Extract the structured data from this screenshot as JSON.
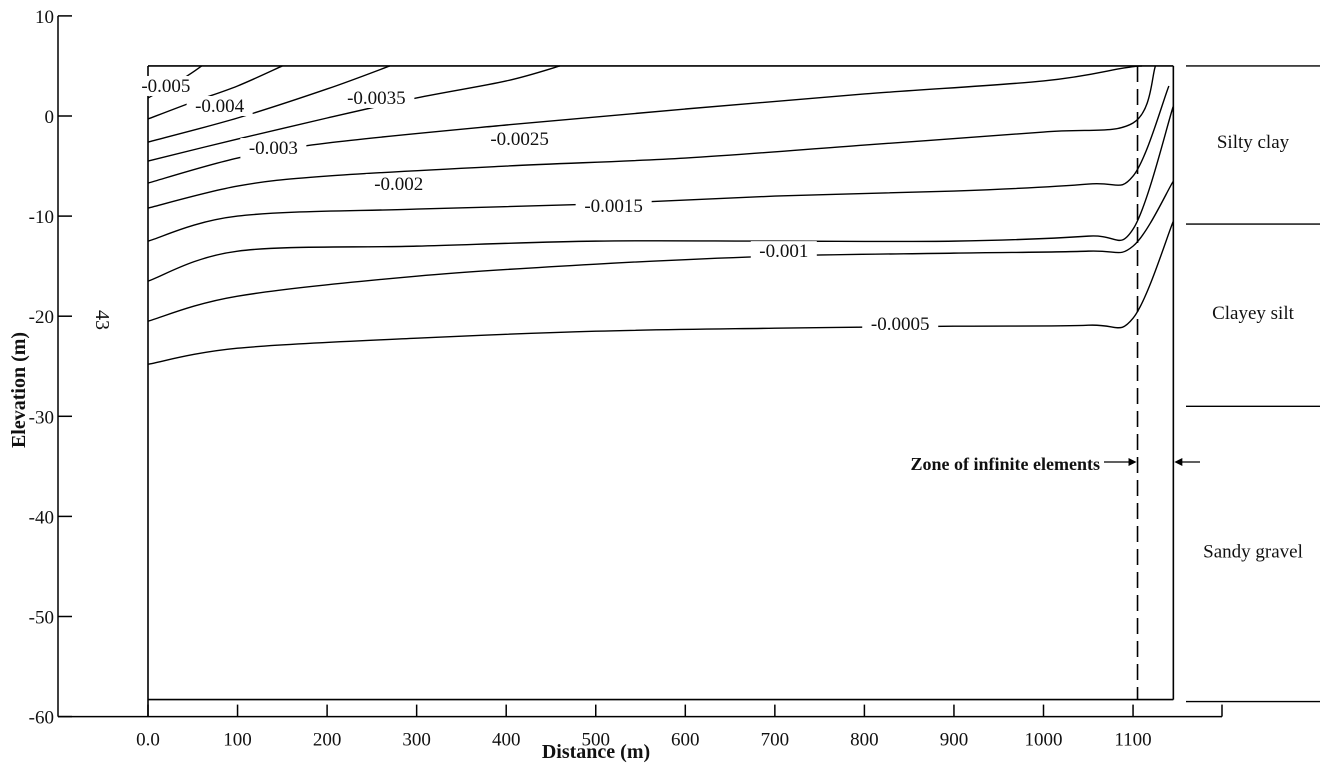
{
  "chart_data": {
    "type": "contour",
    "xlabel": "Distance (m)",
    "ylabel": "Elevation (m)",
    "side_number": "43",
    "xlim": [
      0,
      1100
    ],
    "ylim": [
      -60,
      10
    ],
    "x_ticks": [
      0,
      100,
      200,
      300,
      400,
      500,
      600,
      700,
      800,
      900,
      1000,
      1100
    ],
    "x_tick_labels": [
      "0.0",
      "100",
      "200",
      "300",
      "400",
      "500",
      "600",
      "700",
      "800",
      "900",
      "1000",
      "1100"
    ],
    "y_ticks": [
      10,
      0,
      -10,
      -20,
      -30,
      -40,
      -50,
      -60
    ],
    "y_tick_labels": [
      "10",
      "0",
      "-10",
      "-20",
      "-30",
      "-40",
      "-50",
      "-60"
    ],
    "domain": {
      "x": [
        0,
        1145
      ],
      "y_top": 5,
      "y_bottom": -58.3
    },
    "infinite_zone_x": 1105,
    "infinite_zone_label": "Zone of infinite elements",
    "contours": [
      {
        "label": "-0.005",
        "points": [
          [
            0,
            1.8
          ],
          [
            40,
            3.8
          ],
          [
            60,
            5
          ]
        ]
      },
      {
        "label": "-0.004",
        "points": [
          [
            0,
            -0.3
          ],
          [
            50,
            1.4
          ],
          [
            100,
            3
          ],
          [
            150,
            5
          ]
        ]
      },
      {
        "label": "-0.0035",
        "points": [
          [
            0,
            -2.6
          ],
          [
            100,
            -0.2
          ],
          [
            200,
            2.7
          ],
          [
            270,
            5
          ]
        ]
      },
      {
        "label": "-0.003",
        "points": [
          [
            0,
            -4.5
          ],
          [
            100,
            -2.3
          ],
          [
            200,
            -0.2
          ],
          [
            300,
            1.8
          ],
          [
            400,
            3.5
          ],
          [
            460,
            5
          ]
        ]
      },
      {
        "label": "-0.0025",
        "points": [
          [
            0,
            -6.7
          ],
          [
            100,
            -4.2
          ],
          [
            200,
            -2.7
          ],
          [
            400,
            -0.9
          ],
          [
            600,
            0.7
          ],
          [
            800,
            2.2
          ],
          [
            1000,
            3.5
          ],
          [
            1090,
            4.8
          ],
          [
            1110,
            5
          ]
        ]
      },
      {
        "label": "-0.002",
        "points": [
          [
            0,
            -9.2
          ],
          [
            100,
            -7
          ],
          [
            200,
            -6
          ],
          [
            400,
            -5
          ],
          [
            600,
            -4.2
          ],
          [
            800,
            -2.9
          ],
          [
            1000,
            -1.6
          ],
          [
            1100,
            -0.7
          ],
          [
            1125,
            5
          ]
        ]
      },
      {
        "label": "-0.0015",
        "points": [
          [
            0,
            -12.5
          ],
          [
            100,
            -10
          ],
          [
            300,
            -9.3
          ],
          [
            500,
            -8.8
          ],
          [
            700,
            -8
          ],
          [
            900,
            -7.5
          ],
          [
            1050,
            -6.8
          ],
          [
            1100,
            -6
          ],
          [
            1140,
            3
          ]
        ]
      },
      {
        "label": "-0.001",
        "points": [
          [
            0,
            -16.5
          ],
          [
            100,
            -13.5
          ],
          [
            300,
            -13
          ],
          [
            500,
            -12.5
          ],
          [
            700,
            -12.5
          ],
          [
            900,
            -12.5
          ],
          [
            1050,
            -12
          ],
          [
            1100,
            -11.3
          ],
          [
            1145,
            1
          ]
        ]
      },
      {
        "label": "-0.0005",
        "points": [
          [
            0,
            -20.5
          ],
          [
            100,
            -18
          ],
          [
            300,
            -16
          ],
          [
            500,
            -14.8
          ],
          [
            700,
            -14
          ],
          [
            900,
            -13.7
          ],
          [
            1050,
            -13.5
          ],
          [
            1100,
            -13
          ],
          [
            1145,
            -6.5
          ]
        ]
      },
      {
        "label": "",
        "points": [
          [
            0,
            -24.8
          ],
          [
            100,
            -23.2
          ],
          [
            300,
            -22.2
          ],
          [
            500,
            -21.5
          ],
          [
            700,
            -21.2
          ],
          [
            900,
            -21
          ],
          [
            1050,
            -20.9
          ],
          [
            1100,
            -20.2
          ],
          [
            1145,
            -10.5
          ]
        ]
      }
    ],
    "contour_labels": [
      {
        "text": "-0.005",
        "x": 20,
        "y": 3.0
      },
      {
        "text": "-0.004",
        "x": 80,
        "y": 1.0
      },
      {
        "text": "-0.0035",
        "x": 255,
        "y": 1.8
      },
      {
        "text": "-0.003",
        "x": 140,
        "y": -3.2
      },
      {
        "text": "-0.0025",
        "x": 415,
        "y": -2.3
      },
      {
        "text": "-0.002",
        "x": 280,
        "y": -6.8
      },
      {
        "text": "-0.0015",
        "x": 520,
        "y": -9.0
      },
      {
        "text": "-0.001",
        "x": 710,
        "y": -13.5
      },
      {
        "text": "-0.0005",
        "x": 840,
        "y": -20.8
      }
    ],
    "layers": [
      {
        "name": "Silty clay",
        "label_y": -2.6,
        "boundary_y": -10.8
      },
      {
        "name": "Clayey silt",
        "label_y": -19.7,
        "boundary_y": -29
      },
      {
        "name": "Sandy gravel",
        "label_y": -43.5,
        "boundary_y": -58.5
      }
    ],
    "layer_top_y": 5,
    "grid": false
  }
}
